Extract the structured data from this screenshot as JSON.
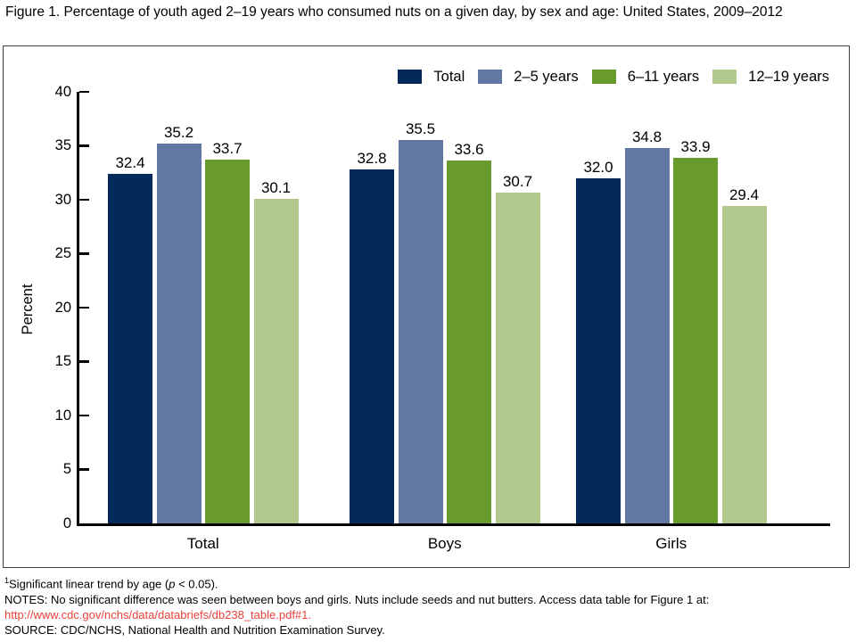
{
  "chart_data": {
    "type": "bar",
    "title": "Figure 1. Percentage of youth aged 2–19 years who consumed nuts on a given day, by sex and age: United States, 2009–2012",
    "ylabel": "Percent",
    "ylim": [
      0,
      40
    ],
    "ytick_step": 5,
    "grid": false,
    "legend_position": "top-right",
    "categories": [
      "Total",
      "Boys",
      "Girls"
    ],
    "series": [
      {
        "name": "Total",
        "color": "#042a5c",
        "values": [
          32.4,
          32.8,
          32.0
        ]
      },
      {
        "name": "2–5 years",
        "color": "#6377a3",
        "values": [
          35.2,
          35.5,
          34.8
        ]
      },
      {
        "name": "6–11 years",
        "color": "#689b2c",
        "values": [
          33.7,
          33.6,
          33.9
        ]
      },
      {
        "name": "12–19 years",
        "color": "#b2c98e",
        "values": [
          30.1,
          30.7,
          29.4
        ]
      }
    ]
  },
  "footnotes": {
    "fn1": {
      "sup": "1",
      "pre": "Significant linear trend by age (",
      "italic": "p",
      "post": " < 0.05)."
    },
    "notes": "NOTES: No significant difference was seen between boys and girls. Nuts include seeds and nut butters. Access data table for Figure 1 at:",
    "link": "http://www.cdc.gov/nchs/data/databriefs/db238_table.pdf#1.",
    "source": "SOURCE: CDC/NCHS, National Health and Nutrition Examination Survey."
  },
  "colors": {
    "link_red": "#e8423b",
    "axis_black": "#000000",
    "box_border": "#404040"
  }
}
